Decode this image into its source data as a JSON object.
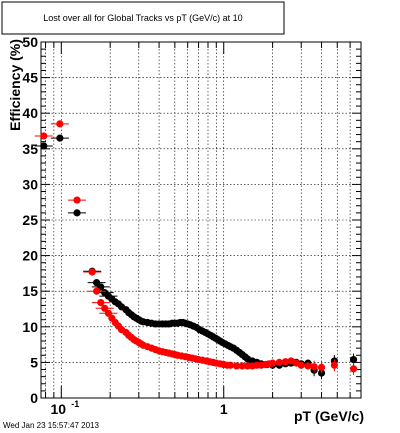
{
  "chart_data": {
    "type": "scatter",
    "title": "Lost over all for Global Tracks vs pT (GeV/c) at 10",
    "xlabel": "pT (GeV/c)",
    "ylabel": "Efficiency (%)",
    "xscale": "log",
    "xlim": [
      0.075,
      7.0
    ],
    "ylim": [
      0,
      50
    ],
    "grid": true,
    "x_major_ticks": [
      {
        "value": 0.1,
        "base": "10",
        "exp": "-1"
      },
      {
        "value": 1.0,
        "base": "1",
        "exp": ""
      }
    ],
    "y_ticks": [
      0,
      5,
      10,
      15,
      20,
      25,
      30,
      35,
      40,
      45,
      50
    ],
    "timestamp": "Wed Jan 23 15:57:47 2013",
    "series": [
      {
        "color": "#000000",
        "points": [
          [
            0.078,
            35.4
          ],
          [
            0.098,
            36.5
          ],
          [
            0.125,
            26.0
          ],
          [
            0.155,
            17.8
          ],
          [
            0.165,
            16.2
          ],
          [
            0.175,
            15.6
          ],
          [
            0.185,
            14.8
          ],
          [
            0.195,
            14.3
          ],
          [
            0.205,
            13.9
          ],
          [
            0.215,
            13.5
          ],
          [
            0.225,
            13.2
          ],
          [
            0.235,
            12.8
          ],
          [
            0.25,
            12.4
          ],
          [
            0.26,
            12.0
          ],
          [
            0.27,
            11.7
          ],
          [
            0.28,
            11.4
          ],
          [
            0.29,
            11.2
          ],
          [
            0.3,
            11.0
          ],
          [
            0.31,
            10.8
          ],
          [
            0.32,
            10.7
          ],
          [
            0.34,
            10.6
          ],
          [
            0.36,
            10.5
          ],
          [
            0.38,
            10.4
          ],
          [
            0.4,
            10.4
          ],
          [
            0.42,
            10.4
          ],
          [
            0.44,
            10.4
          ],
          [
            0.46,
            10.4
          ],
          [
            0.48,
            10.5
          ],
          [
            0.5,
            10.5
          ],
          [
            0.52,
            10.5
          ],
          [
            0.54,
            10.6
          ],
          [
            0.56,
            10.6
          ],
          [
            0.58,
            10.5
          ],
          [
            0.6,
            10.4
          ],
          [
            0.62,
            10.3
          ],
          [
            0.65,
            10.1
          ],
          [
            0.68,
            9.9
          ],
          [
            0.71,
            9.6
          ],
          [
            0.74,
            9.4
          ],
          [
            0.77,
            9.2
          ],
          [
            0.8,
            9.0
          ],
          [
            0.83,
            8.8
          ],
          [
            0.86,
            8.6
          ],
          [
            0.89,
            8.4
          ],
          [
            0.92,
            8.2
          ],
          [
            0.95,
            8.0
          ],
          [
            0.98,
            7.8
          ],
          [
            1.02,
            7.6
          ],
          [
            1.06,
            7.4
          ],
          [
            1.1,
            7.2
          ],
          [
            1.15,
            7.0
          ],
          [
            1.2,
            6.7
          ],
          [
            1.25,
            6.4
          ],
          [
            1.3,
            6.1
          ],
          [
            1.35,
            5.8
          ],
          [
            1.4,
            5.5
          ],
          [
            1.5,
            5.2
          ],
          [
            1.6,
            5.0
          ],
          [
            1.7,
            4.8
          ],
          [
            1.85,
            4.7
          ],
          [
            2.0,
            4.6
          ],
          [
            2.2,
            4.6
          ],
          [
            2.4,
            4.8
          ],
          [
            2.6,
            4.9
          ],
          [
            2.8,
            5.0
          ],
          [
            3.0,
            4.8
          ],
          [
            3.3,
            4.9
          ],
          [
            3.6,
            3.9
          ],
          [
            4.0,
            3.5
          ],
          [
            4.8,
            5.2
          ],
          [
            6.3,
            5.4
          ]
        ]
      },
      {
        "color": "#ff0000",
        "points": [
          [
            0.078,
            36.8
          ],
          [
            0.098,
            38.5
          ],
          [
            0.125,
            27.8
          ],
          [
            0.155,
            17.7
          ],
          [
            0.165,
            15.0
          ],
          [
            0.175,
            13.4
          ],
          [
            0.185,
            12.6
          ],
          [
            0.195,
            11.9
          ],
          [
            0.205,
            11.2
          ],
          [
            0.215,
            10.6
          ],
          [
            0.225,
            10.1
          ],
          [
            0.235,
            9.6
          ],
          [
            0.25,
            9.2
          ],
          [
            0.26,
            8.8
          ],
          [
            0.27,
            8.5
          ],
          [
            0.28,
            8.2
          ],
          [
            0.29,
            8.0
          ],
          [
            0.3,
            7.8
          ],
          [
            0.31,
            7.6
          ],
          [
            0.32,
            7.4
          ],
          [
            0.34,
            7.2
          ],
          [
            0.36,
            7.0
          ],
          [
            0.38,
            6.8
          ],
          [
            0.4,
            6.6
          ],
          [
            0.42,
            6.5
          ],
          [
            0.44,
            6.4
          ],
          [
            0.46,
            6.3
          ],
          [
            0.48,
            6.2
          ],
          [
            0.5,
            6.1
          ],
          [
            0.52,
            6.0
          ],
          [
            0.55,
            5.9
          ],
          [
            0.58,
            5.8
          ],
          [
            0.61,
            5.7
          ],
          [
            0.64,
            5.6
          ],
          [
            0.67,
            5.5
          ],
          [
            0.7,
            5.4
          ],
          [
            0.74,
            5.3
          ],
          [
            0.78,
            5.2
          ],
          [
            0.82,
            5.1
          ],
          [
            0.86,
            5.0
          ],
          [
            0.9,
            4.9
          ],
          [
            0.95,
            4.8
          ],
          [
            1.0,
            4.7
          ],
          [
            1.05,
            4.6
          ],
          [
            1.1,
            4.6
          ],
          [
            1.2,
            4.5
          ],
          [
            1.3,
            4.5
          ],
          [
            1.4,
            4.5
          ],
          [
            1.5,
            4.5
          ],
          [
            1.6,
            4.6
          ],
          [
            1.7,
            4.6
          ],
          [
            1.8,
            4.7
          ],
          [
            1.9,
            4.8
          ],
          [
            2.0,
            4.9
          ],
          [
            2.2,
            5.0
          ],
          [
            2.4,
            5.1
          ],
          [
            2.6,
            5.2
          ],
          [
            2.8,
            4.9
          ],
          [
            3.0,
            4.6
          ],
          [
            3.3,
            4.5
          ],
          [
            3.6,
            4.4
          ],
          [
            4.0,
            4.3
          ],
          [
            4.8,
            4.6
          ],
          [
            6.3,
            4.1
          ]
        ]
      }
    ]
  }
}
